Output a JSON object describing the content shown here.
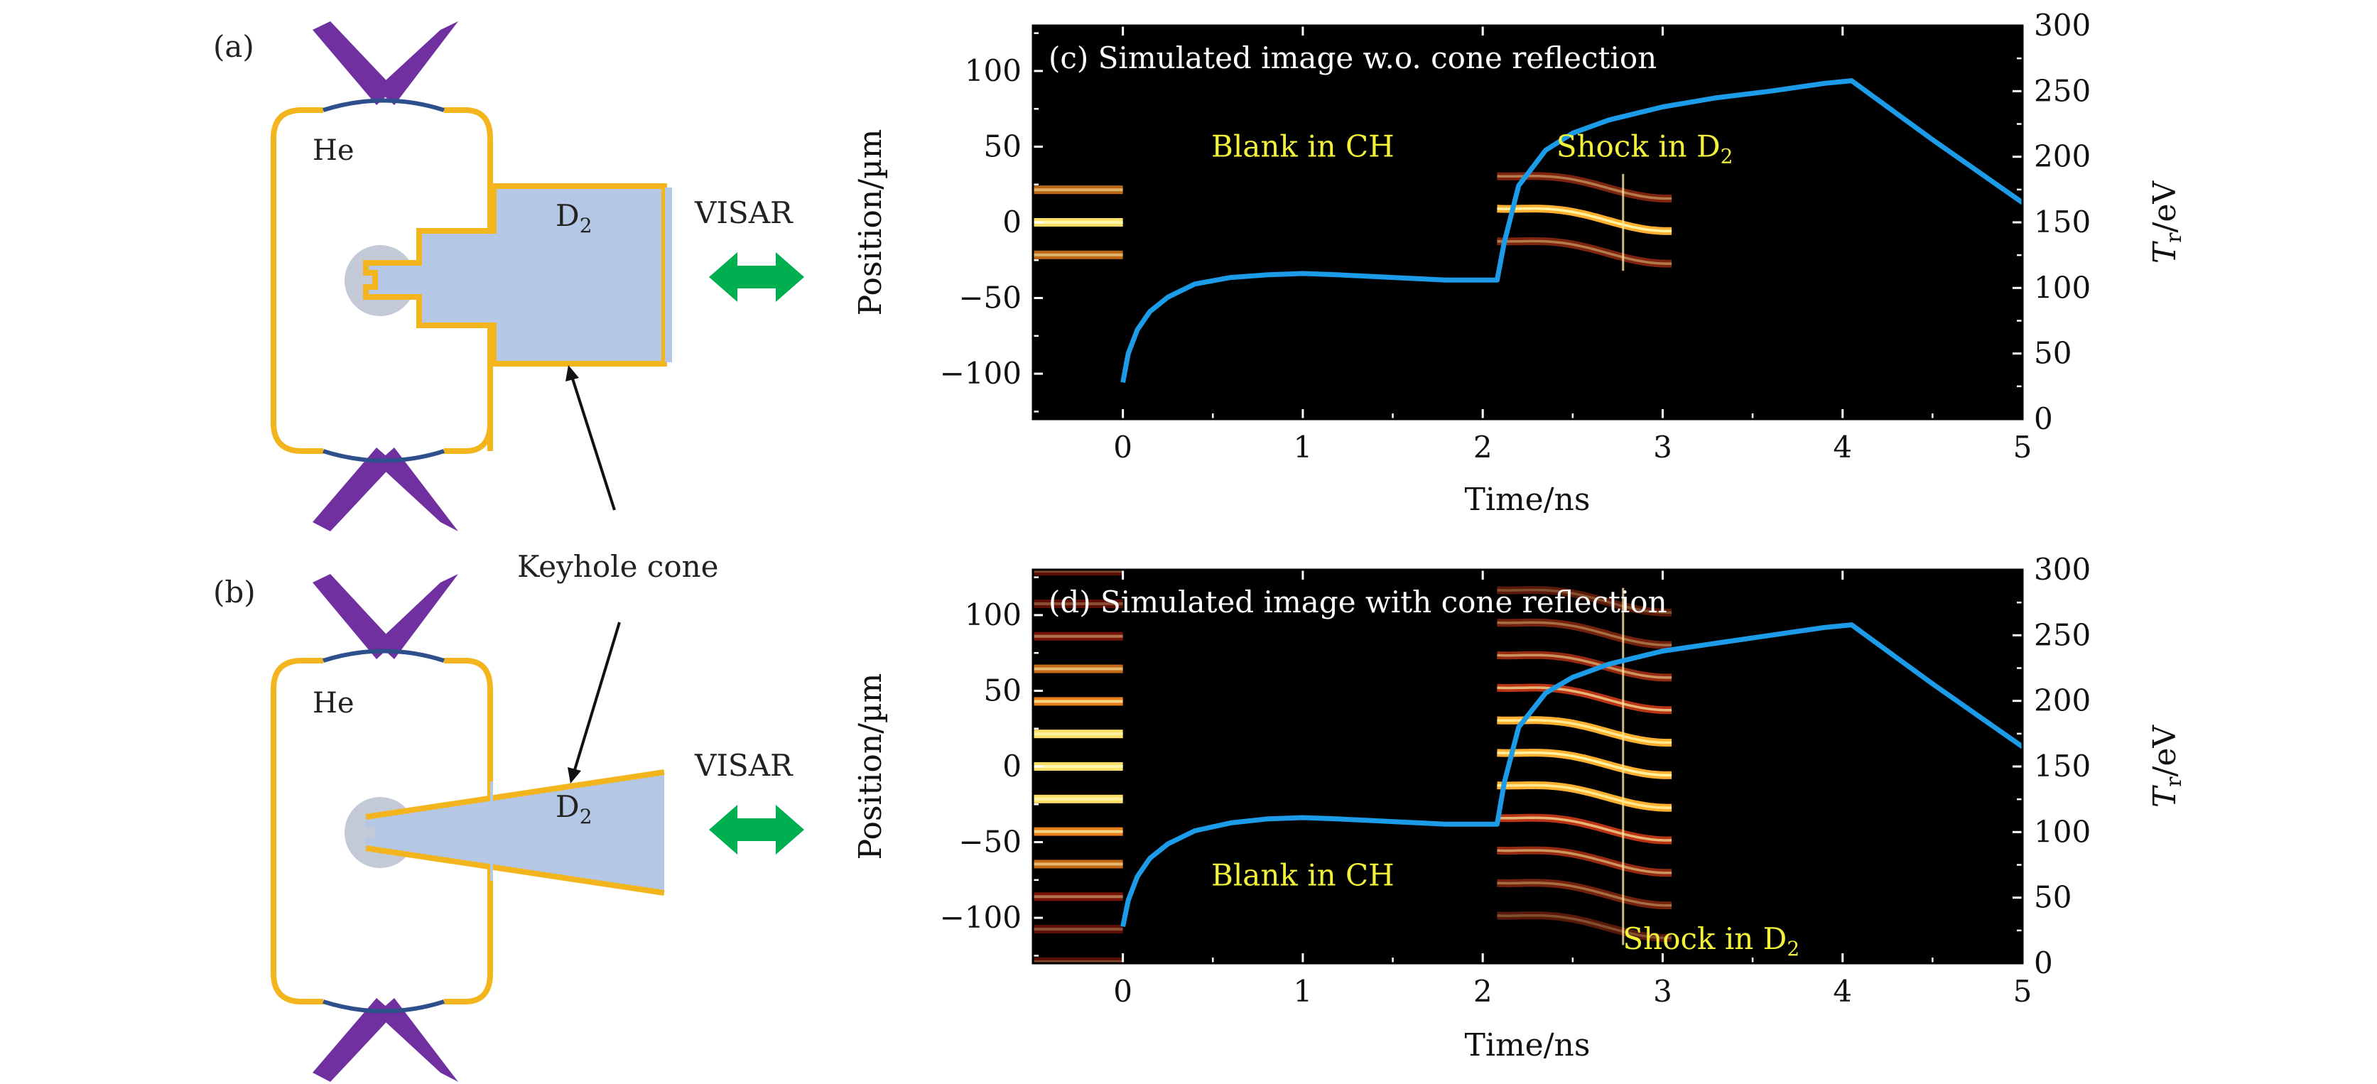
{
  "colors": {
    "hohlraum": "#F2B51D",
    "wire": "#2D4F8C",
    "beam": "#7030A0",
    "d2_fill": "#B4C8E6",
    "capsule": "#C3C9D6",
    "visar_arrow": "#00B050",
    "tr_curve": "#1B9BE8",
    "annotation_yellow": "#F2F23A",
    "plot_background": "#000000"
  },
  "panel_a": {
    "label": "(a)",
    "gas_label": "He",
    "fill_label": "D",
    "fill_subscript": "2",
    "visar_label": "VISAR",
    "arrow_label": "Keyhole cone"
  },
  "panel_b": {
    "label": "(b)",
    "gas_label": "He",
    "fill_label": "D",
    "fill_subscript": "2",
    "visar_label": "VISAR"
  },
  "chart_data": [
    {
      "type": "line",
      "panel": "(c)",
      "title": "(c) Simulated image w.o. cone reflection",
      "xlabel": "Time/ns",
      "ylabel": "Position/µm",
      "y2label": "T",
      "y2label_subscript": "r",
      "y2label_unit": "/eV",
      "xlim": [
        -0.5,
        5
      ],
      "ylim": [
        -130,
        130
      ],
      "y2lim": [
        0,
        300
      ],
      "xticks": [
        0,
        1,
        2,
        3,
        4,
        5
      ],
      "yticks": [
        -100,
        -50,
        0,
        50,
        100
      ],
      "y2ticks": [
        0,
        50,
        100,
        150,
        200,
        250,
        300
      ],
      "xticklabels": [
        "0",
        "1",
        "2",
        "3",
        "4",
        "5"
      ],
      "yticklabels": [
        "−100",
        "−50",
        "0",
        "50",
        "100"
      ],
      "y2ticklabels": [
        "0",
        "50",
        "100",
        "150",
        "200",
        "250",
        "300"
      ],
      "annotations": [
        {
          "text": "Blank in CH",
          "x": 1.0,
          "y": 50
        },
        {
          "text": "Shock in D",
          "subscript": "2",
          "x": 2.9,
          "y": 50
        }
      ],
      "fringe_regions": [
        {
          "t_start": -0.5,
          "t_end": 0.0,
          "y_min": -40,
          "y_max": 40,
          "kind": "static"
        },
        {
          "t_start": 2.08,
          "t_end": 3.05,
          "y_min": -32,
          "y_max": 32,
          "kind": "shock",
          "edge_t": 2.78
        }
      ],
      "series": [
        {
          "name": "T_r",
          "axis": "right",
          "x": [
            0,
            0.03,
            0.08,
            0.15,
            0.25,
            0.4,
            0.6,
            0.8,
            1.0,
            1.2,
            1.5,
            1.8,
            2.08,
            2.12,
            2.2,
            2.35,
            2.5,
            2.7,
            3.0,
            3.3,
            3.6,
            3.9,
            4.05,
            4.5,
            5.0
          ],
          "values": [
            28,
            50,
            68,
            82,
            93,
            103,
            108,
            110,
            111,
            110,
            108,
            106,
            106,
            135,
            178,
            205,
            218,
            228,
            238,
            245,
            250,
            256,
            258,
            213,
            165
          ]
        }
      ]
    },
    {
      "type": "line",
      "panel": "(d)",
      "title": "(d) Simulated image with cone reflection",
      "xlabel": "Time/ns",
      "ylabel": "Position/µm",
      "y2label": "T",
      "y2label_subscript": "r",
      "y2label_unit": "/eV",
      "xlim": [
        -0.5,
        5
      ],
      "ylim": [
        -130,
        130
      ],
      "y2lim": [
        0,
        300
      ],
      "xticks": [
        0,
        1,
        2,
        3,
        4,
        5
      ],
      "yticks": [
        -100,
        -50,
        0,
        50,
        100
      ],
      "y2ticks": [
        0,
        50,
        100,
        150,
        200,
        250,
        300
      ],
      "xticklabels": [
        "0",
        "1",
        "2",
        "3",
        "4",
        "5"
      ],
      "yticklabels": [
        "−100",
        "−50",
        "0",
        "50",
        "100"
      ],
      "y2ticklabels": [
        "0",
        "50",
        "100",
        "150",
        "200",
        "250",
        "300"
      ],
      "annotations": [
        {
          "text": "Blank in CH",
          "x": 1.0,
          "y": -72
        },
        {
          "text": "Shock in D",
          "subscript": "2",
          "x": 3.27,
          "y": -114
        }
      ],
      "fringe_regions": [
        {
          "t_start": -0.5,
          "t_end": 0.0,
          "y_min": -130,
          "y_max": 130,
          "kind": "static"
        },
        {
          "t_start": 2.08,
          "t_end": 3.05,
          "y_min": -118,
          "y_max": 118,
          "kind": "shock",
          "edge_t": 2.78
        }
      ],
      "series": [
        {
          "name": "T_r",
          "axis": "right",
          "x": [
            0,
            0.03,
            0.08,
            0.15,
            0.25,
            0.4,
            0.6,
            0.8,
            1.0,
            1.2,
            1.5,
            1.8,
            2.08,
            2.12,
            2.2,
            2.35,
            2.5,
            2.7,
            3.0,
            3.3,
            3.6,
            3.9,
            4.05,
            4.5,
            5.0
          ],
          "values": [
            28,
            48,
            66,
            80,
            91,
            101,
            107,
            110,
            111,
            110,
            108,
            106,
            106,
            138,
            180,
            206,
            218,
            228,
            238,
            244,
            250,
            256,
            258,
            213,
            165
          ]
        }
      ]
    }
  ]
}
